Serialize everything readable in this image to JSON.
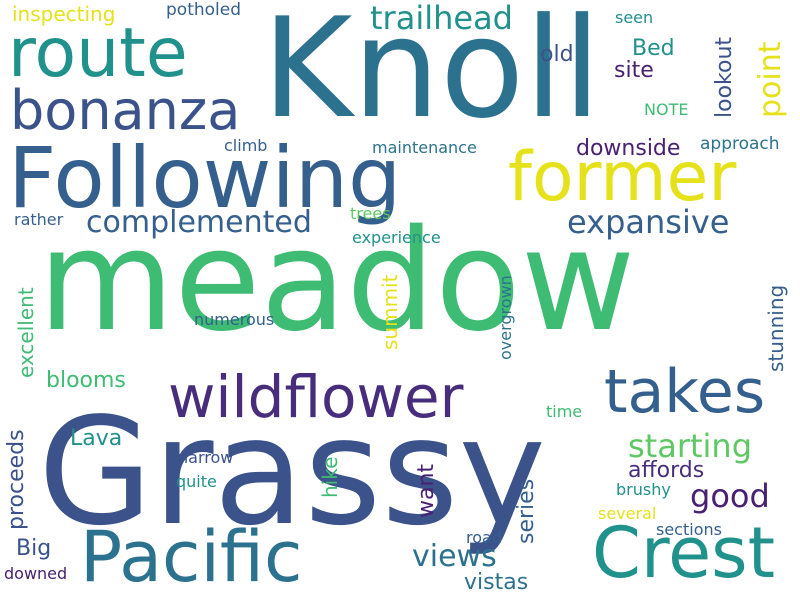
{
  "colors": {
    "background": "#ffffff",
    "yellow": "#e5e11a",
    "light_green": "#5ec962",
    "green": "#3fbc73",
    "teal": "#21918c",
    "teal_blue": "#2c728e",
    "blue": "#355f8d",
    "indigo": "#3b528b",
    "purple": "#472d7b",
    "dark_purple": "#482173"
  },
  "words": {
    "meadow": "meadow",
    "grassy": "Grassy",
    "knoll": "Knoll",
    "following": "Following",
    "former": "former",
    "pacific": "Pacific",
    "crest": "Crest",
    "wildflower": "wildflower",
    "route": "route",
    "bonanza": "bonanza",
    "takes": "takes",
    "complemented": "complemented",
    "expansive": "expansive",
    "trailhead": "trailhead",
    "starting": "starting",
    "good": "good",
    "views": "views",
    "vistas": "vistas",
    "point": "point",
    "lookout": "lookout",
    "inspecting": "inspecting",
    "potholed": "potholed",
    "old": "old",
    "bed": "Bed",
    "site": "site",
    "downside": "downside",
    "approach": "approach",
    "climb": "climb",
    "maintenance": "maintenance",
    "seen": "seen",
    "note": "NOTE",
    "rather": "rather",
    "trees": "trees",
    "experience": "experience",
    "excellent": "excellent",
    "summit": "summit",
    "overgrown": "overgrown",
    "stunning": "stunning",
    "numerous": "numerous",
    "blooms": "blooms",
    "lava": "Lava",
    "affords": "affords",
    "hike": "hike",
    "want": "want",
    "series": "series",
    "proceeds": "proceeds",
    "narrow": "narrow",
    "quite": "quite",
    "time": "time",
    "brushy": "brushy",
    "several": "several",
    "sections": "sections",
    "big": "Big",
    "road": "road",
    "downed": "downed"
  }
}
